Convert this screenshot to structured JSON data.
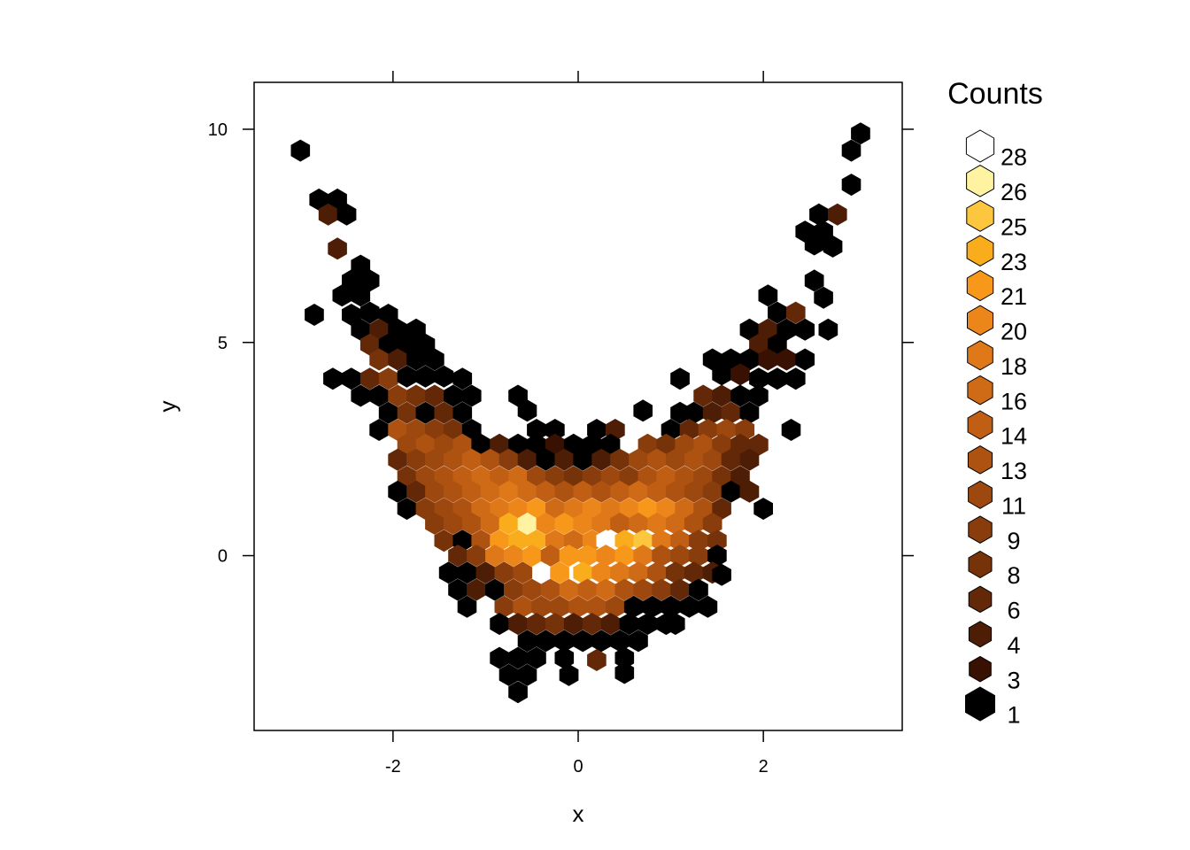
{
  "chart_data": {
    "type": "heatmap",
    "subtype": "hexbin",
    "xlabel": "x",
    "ylabel": "y",
    "xlim": [
      -3.5,
      3.5
    ],
    "ylim": [
      -4.1,
      11.1
    ],
    "x_ticks": [
      -2,
      0,
      2
    ],
    "x_tick_labels": [
      "-2",
      "0",
      "2"
    ],
    "y_ticks": [
      0,
      5,
      10
    ],
    "y_tick_labels": [
      "0",
      "5",
      "10"
    ],
    "grid": false,
    "legend_position": "right",
    "legend": {
      "title": "Counts",
      "levels": [
        {
          "label": "28",
          "color": "#ffffff"
        },
        {
          "label": "26",
          "color": "#fff3a1"
        },
        {
          "label": "25",
          "color": "#fcc63e"
        },
        {
          "label": "23",
          "color": "#f9ad1c"
        },
        {
          "label": "21",
          "color": "#f7981b"
        },
        {
          "label": "20",
          "color": "#ec861a"
        },
        {
          "label": "18",
          "color": "#df7819"
        },
        {
          "label": "16",
          "color": "#cf6a17"
        },
        {
          "label": "14",
          "color": "#c05e14"
        },
        {
          "label": "13",
          "color": "#ae5211"
        },
        {
          "label": "11",
          "color": "#9c480f"
        },
        {
          "label": "9",
          "color": "#893d0c"
        },
        {
          "label": "8",
          "color": "#76330a"
        },
        {
          "label": "6",
          "color": "#622807"
        },
        {
          "label": "4",
          "color": "#4e1d05"
        },
        {
          "label": "3",
          "color": "#381102"
        },
        {
          "label": "1",
          "color": "#000000"
        }
      ]
    },
    "cells": [
      [
        -3.0,
        9.5,
        1
      ],
      [
        3.05,
        9.9,
        1
      ],
      [
        2.95,
        9.5,
        1
      ],
      [
        2.95,
        8.7,
        1
      ],
      [
        -2.8,
        8.35,
        1
      ],
      [
        -2.6,
        8.35,
        1
      ],
      [
        -2.7,
        8.0,
        4
      ],
      [
        -2.5,
        8.0,
        1
      ],
      [
        2.6,
        8.0,
        1
      ],
      [
        2.8,
        8.0,
        4
      ],
      [
        2.45,
        7.6,
        1
      ],
      [
        2.65,
        7.6,
        1
      ],
      [
        2.55,
        7.3,
        1
      ],
      [
        2.75,
        7.25,
        1
      ],
      [
        -2.6,
        7.2,
        4
      ],
      [
        -2.35,
        6.8,
        1
      ],
      [
        -2.45,
        6.45,
        1
      ],
      [
        -2.25,
        6.45,
        1
      ],
      [
        2.55,
        6.45,
        1
      ],
      [
        -2.55,
        6.1,
        1
      ],
      [
        -2.35,
        6.1,
        1
      ],
      [
        2.05,
        6.1,
        1
      ],
      [
        2.65,
        6.05,
        1
      ],
      [
        -2.85,
        5.65,
        1
      ],
      [
        -2.45,
        5.65,
        1
      ],
      [
        -2.25,
        5.7,
        1
      ],
      [
        -2.05,
        5.65,
        1
      ],
      [
        2.15,
        5.7,
        1
      ],
      [
        2.35,
        5.7,
        6
      ],
      [
        -2.35,
        5.3,
        1
      ],
      [
        -2.15,
        5.3,
        4
      ],
      [
        -1.95,
        5.3,
        1
      ],
      [
        -1.75,
        5.3,
        1
      ],
      [
        1.85,
        5.3,
        1
      ],
      [
        2.05,
        5.3,
        4
      ],
      [
        2.25,
        5.3,
        1
      ],
      [
        2.45,
        5.3,
        1
      ],
      [
        2.7,
        5.3,
        1
      ],
      [
        -2.25,
        4.95,
        6
      ],
      [
        -2.05,
        4.95,
        1
      ],
      [
        -1.85,
        4.95,
        1
      ],
      [
        -1.65,
        4.95,
        1
      ],
      [
        1.95,
        4.95,
        4
      ],
      [
        2.15,
        4.95,
        1
      ],
      [
        -2.15,
        4.6,
        8
      ],
      [
        -1.95,
        4.6,
        4
      ],
      [
        -1.75,
        4.6,
        1
      ],
      [
        -1.55,
        4.6,
        1
      ],
      [
        1.45,
        4.6,
        1
      ],
      [
        1.65,
        4.6,
        1
      ],
      [
        1.85,
        4.6,
        1
      ],
      [
        2.05,
        4.6,
        3
      ],
      [
        2.25,
        4.6,
        3
      ],
      [
        2.45,
        4.6,
        1
      ],
      [
        -2.65,
        4.15,
        1
      ],
      [
        -2.45,
        4.15,
        1
      ],
      [
        -2.25,
        4.15,
        6
      ],
      [
        -2.05,
        4.15,
        9
      ],
      [
        -1.85,
        4.2,
        1
      ],
      [
        -1.65,
        4.2,
        1
      ],
      [
        -1.45,
        4.2,
        1
      ],
      [
        -1.25,
        4.15,
        1
      ],
      [
        1.1,
        4.15,
        1
      ],
      [
        1.55,
        4.25,
        1
      ],
      [
        1.75,
        4.25,
        3
      ],
      [
        1.95,
        4.15,
        1
      ],
      [
        2.15,
        4.15,
        1
      ],
      [
        2.35,
        4.15,
        1
      ],
      [
        -2.35,
        3.75,
        1
      ],
      [
        -2.15,
        3.75,
        1
      ],
      [
        -1.95,
        3.75,
        9
      ],
      [
        -1.75,
        3.75,
        8
      ],
      [
        -1.55,
        3.75,
        6
      ],
      [
        -1.35,
        3.75,
        1
      ],
      [
        -1.15,
        3.75,
        1
      ],
      [
        -0.65,
        3.75,
        1
      ],
      [
        1.35,
        3.75,
        6
      ],
      [
        1.55,
        3.75,
        4
      ],
      [
        1.75,
        3.75,
        1
      ],
      [
        1.95,
        3.75,
        1
      ],
      [
        -2.05,
        3.35,
        1
      ],
      [
        -1.85,
        3.35,
        8
      ],
      [
        -1.65,
        3.35,
        1
      ],
      [
        -1.45,
        3.35,
        6
      ],
      [
        -1.25,
        3.35,
        1
      ],
      [
        -0.55,
        3.4,
        1
      ],
      [
        0.7,
        3.4,
        1
      ],
      [
        1.1,
        3.35,
        1
      ],
      [
        1.25,
        3.35,
        1
      ],
      [
        1.45,
        3.35,
        4
      ],
      [
        1.65,
        3.35,
        6
      ],
      [
        1.85,
        3.35,
        1
      ],
      [
        -2.15,
        2.95,
        1
      ],
      [
        -1.95,
        2.95,
        13
      ],
      [
        -1.75,
        2.95,
        11
      ],
      [
        -1.55,
        2.95,
        9
      ],
      [
        -1.35,
        2.95,
        8
      ],
      [
        -1.15,
        2.95,
        1
      ],
      [
        -0.45,
        2.95,
        1
      ],
      [
        -0.25,
        2.95,
        1
      ],
      [
        0.2,
        2.95,
        1
      ],
      [
        0.4,
        2.95,
        4
      ],
      [
        1.0,
        2.95,
        1
      ],
      [
        1.2,
        2.95,
        6
      ],
      [
        1.4,
        2.95,
        9
      ],
      [
        1.6,
        2.95,
        11
      ],
      [
        1.8,
        2.95,
        9
      ],
      [
        2.3,
        2.95,
        1
      ],
      [
        -1.85,
        2.6,
        11
      ],
      [
        -1.65,
        2.6,
        13
      ],
      [
        -1.45,
        2.6,
        11
      ],
      [
        -1.25,
        2.6,
        13
      ],
      [
        -1.05,
        2.6,
        1
      ],
      [
        -0.85,
        2.6,
        4
      ],
      [
        -0.65,
        2.6,
        1
      ],
      [
        -0.45,
        2.6,
        1
      ],
      [
        -0.25,
        2.6,
        3
      ],
      [
        -0.05,
        2.6,
        1
      ],
      [
        0.15,
        2.6,
        1
      ],
      [
        0.35,
        2.6,
        1
      ],
      [
        0.75,
        2.6,
        9
      ],
      [
        0.95,
        2.6,
        8
      ],
      [
        1.15,
        2.6,
        11
      ],
      [
        1.35,
        2.6,
        13
      ],
      [
        1.55,
        2.6,
        9
      ],
      [
        1.75,
        2.6,
        6
      ],
      [
        1.95,
        2.6,
        6
      ],
      [
        -1.95,
        2.25,
        6
      ],
      [
        -1.75,
        2.25,
        9
      ],
      [
        -1.55,
        2.25,
        11
      ],
      [
        -1.35,
        2.25,
        13
      ],
      [
        -1.15,
        2.25,
        14
      ],
      [
        -0.95,
        2.25,
        13
      ],
      [
        -0.75,
        2.25,
        9
      ],
      [
        -0.55,
        2.25,
        4
      ],
      [
        -0.35,
        2.25,
        1
      ],
      [
        -0.15,
        2.25,
        4
      ],
      [
        0.05,
        2.25,
        1
      ],
      [
        0.25,
        2.25,
        4
      ],
      [
        0.45,
        2.25,
        8
      ],
      [
        0.65,
        2.25,
        11
      ],
      [
        0.85,
        2.25,
        13
      ],
      [
        1.05,
        2.25,
        11
      ],
      [
        1.25,
        2.25,
        13
      ],
      [
        1.45,
        2.25,
        11
      ],
      [
        1.65,
        2.25,
        6
      ],
      [
        1.85,
        2.25,
        4
      ],
      [
        -1.85,
        1.85,
        8
      ],
      [
        -1.65,
        1.85,
        11
      ],
      [
        -1.45,
        1.85,
        13
      ],
      [
        -1.25,
        1.85,
        14
      ],
      [
        -1.05,
        1.85,
        16
      ],
      [
        -0.85,
        1.85,
        14
      ],
      [
        -0.65,
        1.85,
        16
      ],
      [
        -0.45,
        1.85,
        11
      ],
      [
        -0.25,
        1.85,
        9
      ],
      [
        -0.05,
        1.85,
        8
      ],
      [
        0.15,
        1.85,
        9
      ],
      [
        0.35,
        1.85,
        11
      ],
      [
        0.55,
        1.85,
        9
      ],
      [
        0.75,
        1.85,
        13
      ],
      [
        0.95,
        1.85,
        14
      ],
      [
        1.15,
        1.85,
        13
      ],
      [
        1.35,
        1.85,
        11
      ],
      [
        1.55,
        1.85,
        8
      ],
      [
        1.75,
        1.85,
        4
      ],
      [
        -1.95,
        1.5,
        1
      ],
      [
        -1.75,
        1.5,
        6
      ],
      [
        -1.55,
        1.5,
        11
      ],
      [
        -1.35,
        1.5,
        13
      ],
      [
        -1.15,
        1.5,
        14
      ],
      [
        -0.95,
        1.5,
        16
      ],
      [
        -0.75,
        1.5,
        18
      ],
      [
        -0.55,
        1.5,
        16
      ],
      [
        -0.35,
        1.5,
        14
      ],
      [
        -0.15,
        1.5,
        13
      ],
      [
        0.05,
        1.5,
        14
      ],
      [
        0.25,
        1.5,
        13
      ],
      [
        0.45,
        1.5,
        14
      ],
      [
        0.65,
        1.5,
        16
      ],
      [
        0.85,
        1.5,
        14
      ],
      [
        1.05,
        1.5,
        13
      ],
      [
        1.25,
        1.5,
        11
      ],
      [
        1.45,
        1.5,
        9
      ],
      [
        1.65,
        1.5,
        1
      ],
      [
        1.85,
        1.5,
        4
      ],
      [
        -1.85,
        1.1,
        1
      ],
      [
        -1.65,
        1.1,
        9
      ],
      [
        -1.45,
        1.1,
        11
      ],
      [
        -1.25,
        1.1,
        13
      ],
      [
        -1.05,
        1.1,
        16
      ],
      [
        -0.85,
        1.1,
        18
      ],
      [
        -0.65,
        1.1,
        20
      ],
      [
        -0.45,
        1.1,
        21
      ],
      [
        -0.25,
        1.1,
        16
      ],
      [
        -0.05,
        1.1,
        18
      ],
      [
        0.15,
        1.1,
        20
      ],
      [
        0.35,
        1.1,
        18
      ],
      [
        0.55,
        1.1,
        20
      ],
      [
        0.75,
        1.1,
        21
      ],
      [
        0.95,
        1.1,
        20
      ],
      [
        1.15,
        1.1,
        16
      ],
      [
        1.35,
        1.1,
        13
      ],
      [
        1.55,
        1.1,
        6
      ],
      [
        2.0,
        1.1,
        1
      ],
      [
        -1.55,
        0.75,
        9
      ],
      [
        -1.35,
        0.75,
        11
      ],
      [
        -1.15,
        0.75,
        13
      ],
      [
        -0.95,
        0.75,
        16
      ],
      [
        -0.75,
        0.75,
        23
      ],
      [
        -0.55,
        0.75,
        26
      ],
      [
        -0.35,
        0.75,
        20
      ],
      [
        -0.15,
        0.75,
        21
      ],
      [
        0.05,
        0.75,
        20
      ],
      [
        0.25,
        0.75,
        18
      ],
      [
        0.45,
        0.75,
        14
      ],
      [
        0.65,
        0.75,
        16
      ],
      [
        0.85,
        0.75,
        18
      ],
      [
        1.05,
        0.75,
        16
      ],
      [
        1.25,
        0.75,
        13
      ],
      [
        1.45,
        0.75,
        9
      ],
      [
        -1.45,
        0.35,
        8
      ],
      [
        -1.25,
        0.35,
        1
      ],
      [
        -1.05,
        0.35,
        13
      ],
      [
        -0.85,
        0.35,
        21
      ],
      [
        -0.65,
        0.35,
        23
      ],
      [
        -0.45,
        0.35,
        23
      ],
      [
        -0.25,
        0.35,
        18
      ],
      [
        -0.05,
        0.35,
        16
      ],
      [
        0.15,
        0.35,
        20
      ],
      [
        0.3,
        0.35,
        28
      ],
      [
        0.5,
        0.35,
        23
      ],
      [
        0.7,
        0.35,
        25
      ],
      [
        0.9,
        0.35,
        18
      ],
      [
        1.1,
        0.35,
        14
      ],
      [
        1.3,
        0.35,
        9
      ],
      [
        1.5,
        0.35,
        8
      ],
      [
        -1.3,
        0.0,
        6
      ],
      [
        -1.1,
        0.0,
        9
      ],
      [
        -0.9,
        0.0,
        18
      ],
      [
        -0.7,
        0.0,
        20
      ],
      [
        -0.5,
        0.0,
        21
      ],
      [
        -0.3,
        0.0,
        14
      ],
      [
        -0.1,
        0.0,
        21
      ],
      [
        0.1,
        0.0,
        21
      ],
      [
        0.3,
        0.0,
        20
      ],
      [
        0.5,
        0.0,
        21
      ],
      [
        0.7,
        0.0,
        18
      ],
      [
        0.9,
        0.0,
        13
      ],
      [
        1.1,
        0.0,
        11
      ],
      [
        1.3,
        0.0,
        9
      ],
      [
        1.5,
        0.0,
        1
      ],
      [
        -1.4,
        -0.4,
        1
      ],
      [
        -1.2,
        -0.4,
        1
      ],
      [
        -1.0,
        -0.4,
        4
      ],
      [
        -0.8,
        -0.4,
        9
      ],
      [
        -0.6,
        -0.4,
        11
      ],
      [
        -0.35,
        -0.45,
        28
      ],
      [
        -0.2,
        -0.4,
        21
      ],
      [
        0.05,
        -0.4,
        23
      ],
      [
        0.25,
        -0.4,
        20
      ],
      [
        0.45,
        -0.4,
        18
      ],
      [
        0.65,
        -0.4,
        16
      ],
      [
        0.85,
        -0.4,
        13
      ],
      [
        1.05,
        -0.4,
        8
      ],
      [
        1.25,
        -0.4,
        6
      ],
      [
        1.45,
        -0.4,
        4
      ],
      [
        1.55,
        -0.45,
        1
      ],
      [
        -1.3,
        -0.8,
        1
      ],
      [
        -1.1,
        -0.8,
        4
      ],
      [
        -0.9,
        -0.8,
        1
      ],
      [
        -0.7,
        -0.8,
        9
      ],
      [
        -0.5,
        -0.8,
        11
      ],
      [
        -0.3,
        -0.8,
        13
      ],
      [
        -0.1,
        -0.8,
        16
      ],
      [
        0.1,
        -0.8,
        14
      ],
      [
        0.3,
        -0.8,
        16
      ],
      [
        0.5,
        -0.8,
        13
      ],
      [
        0.7,
        -0.8,
        11
      ],
      [
        0.9,
        -0.8,
        9
      ],
      [
        1.1,
        -0.8,
        6
      ],
      [
        1.3,
        -0.8,
        1
      ],
      [
        -1.2,
        -1.2,
        1
      ],
      [
        -0.8,
        -1.2,
        9
      ],
      [
        -0.6,
        -1.2,
        13
      ],
      [
        -0.4,
        -1.2,
        11
      ],
      [
        -0.2,
        -1.2,
        11
      ],
      [
        0.0,
        -1.2,
        13
      ],
      [
        0.2,
        -1.2,
        13
      ],
      [
        0.4,
        -1.2,
        11
      ],
      [
        0.6,
        -1.2,
        1
      ],
      [
        0.8,
        -1.2,
        1
      ],
      [
        1.0,
        -1.2,
        1
      ],
      [
        1.2,
        -1.2,
        1
      ],
      [
        1.4,
        -1.2,
        1
      ],
      [
        -0.85,
        -1.6,
        1
      ],
      [
        -0.65,
        -1.6,
        4
      ],
      [
        -0.45,
        -1.6,
        6
      ],
      [
        -0.25,
        -1.6,
        8
      ],
      [
        -0.05,
        -1.6,
        4
      ],
      [
        0.15,
        -1.6,
        6
      ],
      [
        0.35,
        -1.6,
        4
      ],
      [
        0.55,
        -1.6,
        1
      ],
      [
        0.75,
        -1.6,
        1
      ],
      [
        0.95,
        -1.6,
        1
      ],
      [
        1.05,
        -1.6,
        1
      ],
      [
        -0.55,
        -2.0,
        1
      ],
      [
        -0.35,
        -2.0,
        1
      ],
      [
        -0.15,
        -2.0,
        1
      ],
      [
        0.05,
        -2.0,
        1
      ],
      [
        0.25,
        -2.0,
        1
      ],
      [
        0.45,
        -2.0,
        1
      ],
      [
        0.65,
        -2.0,
        1
      ],
      [
        -0.85,
        -2.4,
        1
      ],
      [
        -0.65,
        -2.4,
        1
      ],
      [
        -0.45,
        -2.4,
        1
      ],
      [
        -0.15,
        -2.4,
        1
      ],
      [
        0.2,
        -2.45,
        6
      ],
      [
        0.5,
        -2.4,
        1
      ],
      [
        -0.75,
        -2.8,
        1
      ],
      [
        -0.55,
        -2.8,
        1
      ],
      [
        -0.1,
        -2.8,
        1
      ],
      [
        0.5,
        -2.75,
        1
      ],
      [
        -0.65,
        -3.2,
        1
      ]
    ]
  }
}
